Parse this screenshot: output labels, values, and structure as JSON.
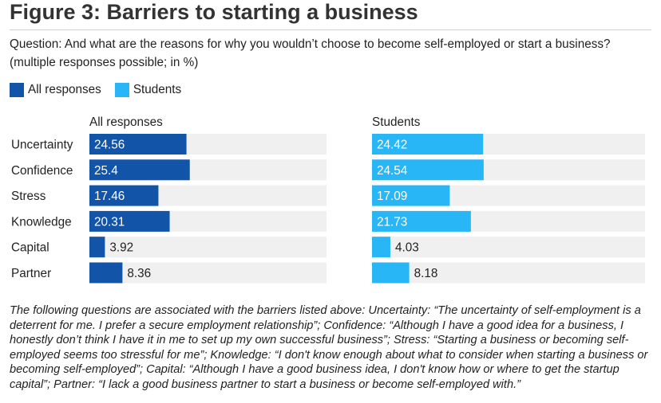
{
  "figure": {
    "title": "Figure 3: Barriers to starting a business",
    "question": "Question: And what are the reasons for why you wouldn’t choose to become self-employed or start a business? (multiple responses possible; in %)",
    "caption": "The following questions are associated with the barriers listed above: Uncertainty: “The uncertainty of self-employment is a deterrent for me. I prefer a secure employment relationship”; Confidence: “Although I have a good idea for a business, I honestly don’t think I have it in me to set up my own successful business”; Stress: “Starting a business or becoming self-employed seems too stressful for me”; Knowledge: “I don't know enough about what to consider when starting a business or becoming self-employed”; Capital: “Although I have a good business idea, I don't know how or where to get the startup capital”; Partner: “I lack a good business partner to start a business or become self-employed with.”"
  },
  "legend": [
    {
      "label": "All responses",
      "color": "#1254a8"
    },
    {
      "label": "Students",
      "color": "#29b6f6"
    }
  ],
  "chart_data": {
    "type": "bar",
    "orientation": "horizontal",
    "title": "Figure 3: Barriers to starting a business",
    "categories": [
      "Uncertainty",
      "Confidence",
      "Stress",
      "Knowledge",
      "Capital",
      "Partner"
    ],
    "series": [
      {
        "name": "All responses",
        "panel_label": "All responses",
        "color": "#1254a8",
        "values": [
          24.56,
          25.4,
          17.46,
          20.31,
          3.92,
          8.36
        ],
        "labels": [
          "24.56",
          "25.4",
          "17.46",
          "20.31",
          "3.92",
          "8.36"
        ]
      },
      {
        "name": "Students",
        "panel_label": "Students",
        "color": "#29b6f6",
        "values": [
          24.42,
          24.54,
          17.09,
          21.73,
          4.03,
          8.18
        ],
        "labels": [
          "24.42",
          "24.54",
          "17.09",
          "21.73",
          "4.03",
          "8.18"
        ]
      }
    ],
    "xlim": [
      0,
      60
    ],
    "grid": false,
    "legend_position": "top-left"
  }
}
